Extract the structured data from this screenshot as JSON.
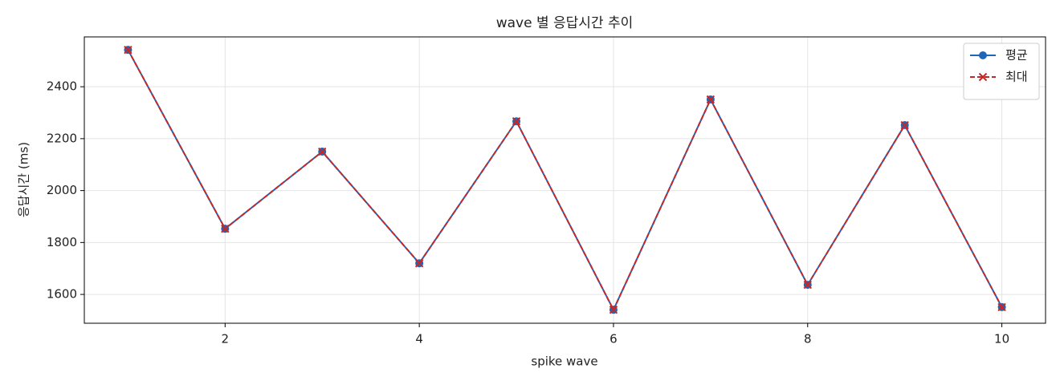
{
  "chart_data": {
    "type": "line",
    "title": "wave 별 응답시간 추이",
    "x_label": "spike wave",
    "y_label": "응답시간 (ms)",
    "x": [
      1,
      2,
      3,
      4,
      5,
      6,
      7,
      8,
      9,
      10
    ],
    "series": [
      {
        "name": "평균",
        "color": "#1f66b8",
        "marker": "circle",
        "dash": false,
        "values": [
          2542,
          1853,
          2150,
          1720,
          2267,
          1541,
          2351,
          1637,
          2252,
          1551
        ]
      },
      {
        "name": "최대",
        "color": "#c62828",
        "marker": "x",
        "dash": true,
        "values": [
          2542,
          1853,
          2150,
          1720,
          2267,
          1541,
          2351,
          1637,
          2252,
          1551
        ]
      }
    ],
    "xlim": [
      0.55,
      10.45
    ],
    "xticks": [
      2,
      4,
      6,
      8,
      10
    ],
    "ylim": [
      1489,
      2592
    ],
    "yticks": [
      1600,
      1800,
      2000,
      2200,
      2400
    ],
    "grid": true,
    "legend": "upper right"
  }
}
